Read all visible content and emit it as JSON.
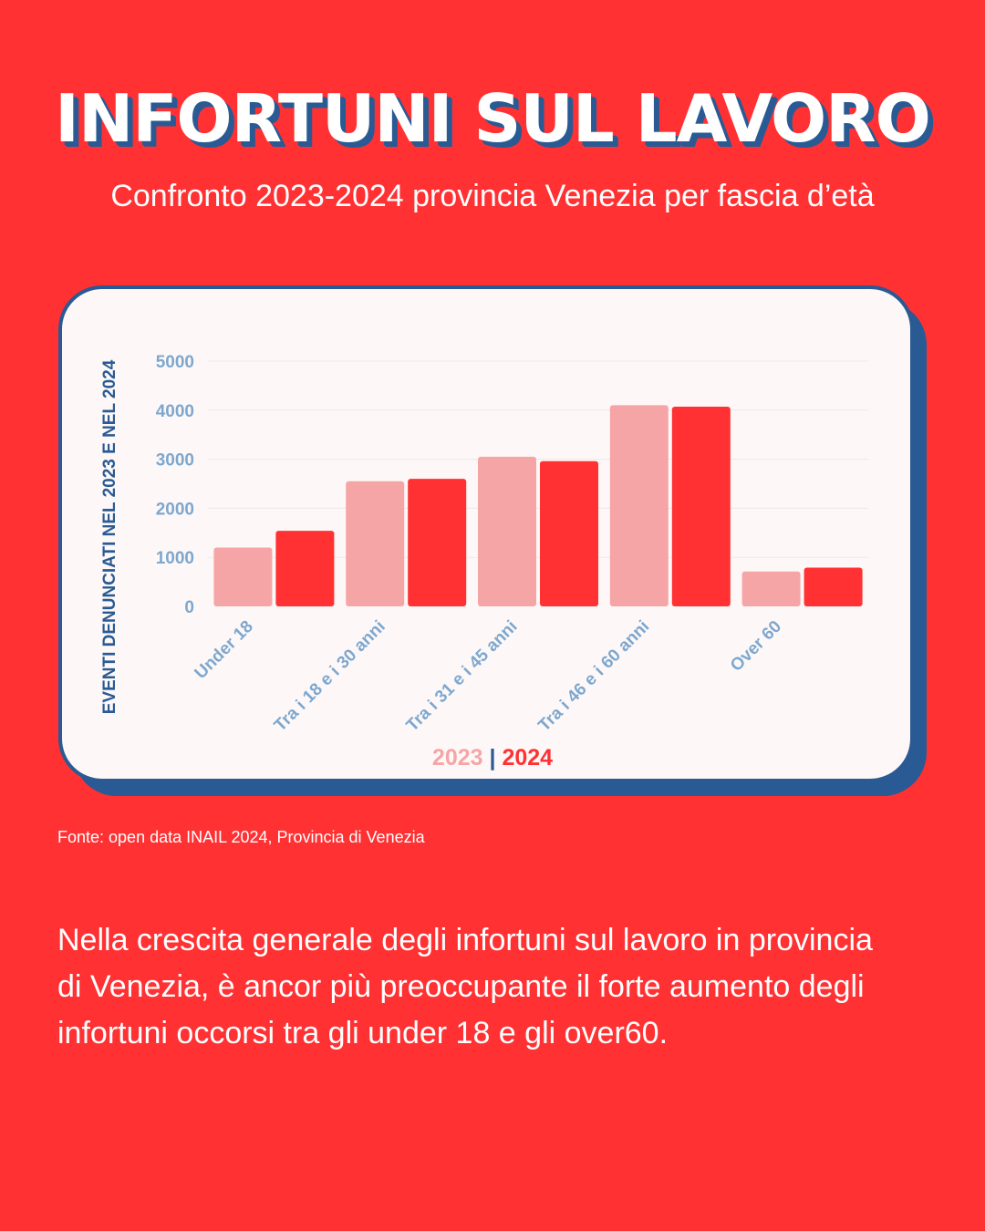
{
  "header": {
    "title": "INFORTUNI SUL LAVORO",
    "subtitle": "Confronto 2023-2024 provincia Venezia per fascia d’età"
  },
  "legend": {
    "series_2023": "2023",
    "separator": "|",
    "series_2024": "2024"
  },
  "source": "Fonte: open data INAIL 2024, Provincia di Venezia",
  "body_text": "Nella crescita generale degli infortuni sul lavoro in provincia di Venezia, è ancor più preoccupante il forte aumento degli infortuni occorsi tra gli under 18 e gli over60.",
  "colors": {
    "background": "#ff3133",
    "series_2023": "#f6a5a6",
    "series_2024": "#ff3133",
    "accent_blue": "#2a5a93",
    "tick_label": "#7ea7cf"
  },
  "chart_data": {
    "type": "bar",
    "categories": [
      "Under 18",
      "Tra i 18 e i 30 anni",
      "Tra i 31 e i 45 anni",
      "Tra i 46 e i 60 anni",
      "Over 60"
    ],
    "series": [
      {
        "name": "2023",
        "values": [
          1200,
          2550,
          3050,
          4100,
          710
        ]
      },
      {
        "name": "2024",
        "values": [
          1540,
          2600,
          2960,
          4070,
          790
        ]
      }
    ],
    "ylabel": "EVENTI DENUNCIATI NEL 2023 E NEL 2024",
    "xlabel": "",
    "ylim": [
      0,
      5000
    ],
    "yticks": [
      0,
      1000,
      2000,
      3000,
      4000,
      5000
    ],
    "grid": true,
    "legend_position": "bottom"
  }
}
